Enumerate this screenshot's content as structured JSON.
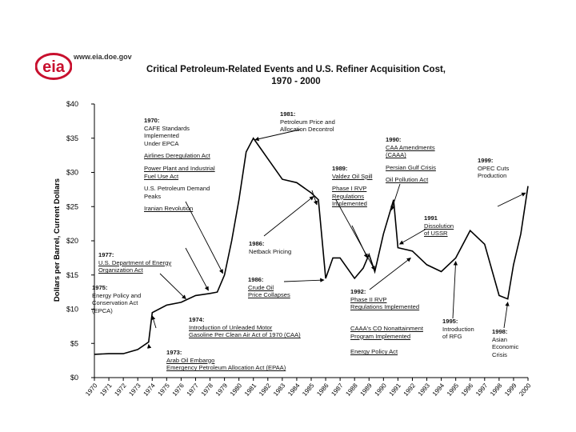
{
  "header": {
    "logo_text": "eia",
    "url": "www.eia.doe.gov",
    "title_line1": "Critical Petroleum-Related Events and U.S. Refiner Acquisition Cost,",
    "title_line2": "1970 - 2000"
  },
  "colors": {
    "logo_red": "#c8102e",
    "line": "#000000",
    "text": "#111111"
  },
  "chart_data": {
    "type": "line",
    "title": "Critical Petroleum-Related Events and U.S. Refiner Acquisition Cost, 1970 - 2000",
    "xlabel": "",
    "ylabel": "Dollars per Barrel, Current Dollars",
    "ylim": [
      0,
      40
    ],
    "xlim": [
      1970,
      2000
    ],
    "yticks": [
      "$0",
      "$5",
      "$10",
      "$15",
      "$20",
      "$25",
      "$30",
      "$35",
      "$40"
    ],
    "xticks": [
      "1970",
      "1971",
      "1972",
      "1973",
      "1974",
      "1975",
      "1976",
      "1977",
      "1978",
      "1979",
      "1980",
      "1981",
      "1982",
      "1983",
      "1984",
      "1985",
      "1986",
      "1987",
      "1988",
      "1989",
      "1990",
      "1991",
      "1992",
      "1993",
      "1994",
      "1995",
      "1996",
      "1997",
      "1998",
      "1999",
      "2000"
    ],
    "series": [
      {
        "name": "U.S. Refiner Acquisition Cost",
        "x": [
          1970,
          1971,
          1972,
          1973,
          1973.75,
          1974,
          1975,
          1976,
          1977,
          1978,
          1978.5,
          1979,
          1979.5,
          1980,
          1980.5,
          1981,
          1981.5,
          1982,
          1983,
          1984,
          1985,
          1985.5,
          1986,
          1986.5,
          1987,
          1988,
          1988.6,
          1989,
          1989.4,
          1990,
          1990.7,
          1991,
          1992,
          1993,
          1994,
          1995,
          1996,
          1997,
          1998,
          1998.6,
          1999,
          1999.5,
          2000
        ],
        "y": [
          3.4,
          3.5,
          3.5,
          4.1,
          5.2,
          9.5,
          10.6,
          11.0,
          12.0,
          12.3,
          12.5,
          15.0,
          20.0,
          26.0,
          33.0,
          35.0,
          33.5,
          32.0,
          29.0,
          28.5,
          27.0,
          26.0,
          14.5,
          17.5,
          17.5,
          14.5,
          16.0,
          18.0,
          15.5,
          21.0,
          26.0,
          19.0,
          18.5,
          16.5,
          15.5,
          17.5,
          21.5,
          19.5,
          12.0,
          11.5,
          16.5,
          21.0,
          28.0
        ]
      }
    ],
    "annotations": [
      {
        "id": "1970",
        "lines": [
          {
            "t": "1970:",
            "s": "yr"
          },
          {
            "t": "CAFE Standards",
            "s": "p"
          },
          {
            "t": "Implemented",
            "s": "p"
          },
          {
            "t": "Under EPCA",
            "s": "p"
          },
          {
            "t": "Airlines Deregulation Act",
            "s": "u"
          },
          {
            "t": "Power Plant and Industrial",
            "s": "u"
          },
          {
            "t": "Fuel Use Act",
            "s": "u"
          },
          {
            "t": "U.S. Petroleum Demand",
            "s": "p"
          },
          {
            "t": "Peaks",
            "s": "p"
          },
          {
            "t": "Iranian Revolution",
            "s": "u"
          }
        ]
      },
      {
        "id": "1981",
        "lines": [
          {
            "t": "1981:",
            "s": "yr"
          },
          {
            "t": "Petroleum Price and",
            "s": "p"
          },
          {
            "t": "Allocation Decontrol",
            "s": "p"
          }
        ]
      },
      {
        "id": "1990",
        "lines": [
          {
            "t": "1990:",
            "s": "yr"
          },
          {
            "t": "CAA Amendments",
            "s": "u"
          },
          {
            "t": "(CAAA)",
            "s": "u"
          },
          {
            "t": "Persian Gulf Crisis",
            "s": "u"
          },
          {
            "t": "Oil Pollution Act",
            "s": "u"
          }
        ]
      },
      {
        "id": "1989",
        "lines": [
          {
            "t": "1989:",
            "s": "yr"
          },
          {
            "t": "Valdez Oil Spill",
            "s": "u"
          },
          {
            "t": "Phase I RVP",
            "s": "u"
          },
          {
            "t": "Regulations",
            "s": "u"
          },
          {
            "t": "Implemented",
            "s": "u"
          }
        ]
      },
      {
        "id": "1999",
        "lines": [
          {
            "t": "1999:",
            "s": "yr"
          },
          {
            "t": "OPEC Cuts",
            "s": "p"
          },
          {
            "t": "Production",
            "s": "p"
          }
        ]
      },
      {
        "id": "1991",
        "lines": [
          {
            "t": "1991",
            "s": "yr"
          },
          {
            "t": "Dissolution",
            "s": "u"
          },
          {
            "t": "of USSR",
            "s": "u"
          }
        ]
      },
      {
        "id": "1977",
        "lines": [
          {
            "t": "1977:",
            "s": "yr"
          },
          {
            "t": "U.S. Department of Energy",
            "s": "u"
          },
          {
            "t": "Organization Act",
            "s": "u"
          }
        ]
      },
      {
        "id": "1986a",
        "lines": [
          {
            "t": "1986:",
            "s": "yr"
          },
          {
            "t": "Netback Pricing",
            "s": "p"
          }
        ]
      },
      {
        "id": "1986b",
        "lines": [
          {
            "t": "1986:",
            "s": "yr"
          },
          {
            "t": "Crude Oil",
            "s": "u"
          },
          {
            "t": "Price Collapses",
            "s": "u"
          }
        ]
      },
      {
        "id": "1975",
        "lines": [
          {
            "t": "1975:",
            "s": "yr"
          },
          {
            "t": "Energy Policy and",
            "s": "p"
          },
          {
            "t": "Conservation Act",
            "s": "p"
          },
          {
            "t": "(EPCA)",
            "s": "p"
          }
        ]
      },
      {
        "id": "1992",
        "lines": [
          {
            "t": "1992:",
            "s": "yr"
          },
          {
            "t": "Phase II RVP",
            "s": "u"
          },
          {
            "t": "Regulations Implemented",
            "s": "u"
          }
        ]
      },
      {
        "id": "1974",
        "lines": [
          {
            "t": "1974:",
            "s": "yr"
          },
          {
            "t": "Introduction of Unleaded Motor",
            "s": "u"
          },
          {
            "t": "Gasoline Per Clean Air Act of 1970 (CAA)",
            "s": "u"
          }
        ]
      },
      {
        "id": "1995",
        "lines": [
          {
            "t": "1995:",
            "s": "yr"
          },
          {
            "t": "Introduction",
            "s": "p"
          },
          {
            "t": "of RFG",
            "s": "p"
          }
        ]
      },
      {
        "id": "caaa",
        "lines": [
          {
            "t": "CAAA's CO Nonattainment",
            "s": "u"
          },
          {
            "t": "Program Implemented",
            "s": "u"
          },
          {
            "t": "Energy Policy Act",
            "s": "u"
          }
        ]
      },
      {
        "id": "1998",
        "lines": [
          {
            "t": "1998:",
            "s": "yr"
          },
          {
            "t": "Asian",
            "s": "p"
          },
          {
            "t": "Economic",
            "s": "p"
          },
          {
            "t": "Crisis",
            "s": "p"
          }
        ]
      },
      {
        "id": "1973",
        "lines": [
          {
            "t": "1973:",
            "s": "yr"
          },
          {
            "t": "Arab Oil Embargo",
            "s": "u"
          },
          {
            "t": "Emergency Petroleum Allocation Act (EPAA)",
            "s": "u"
          }
        ]
      }
    ]
  }
}
